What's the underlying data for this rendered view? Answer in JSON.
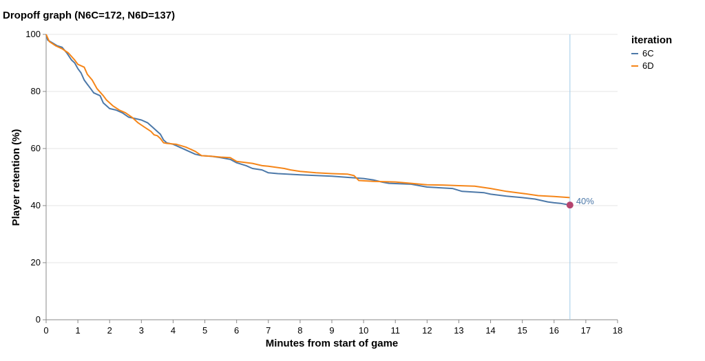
{
  "chart_data": {
    "type": "line",
    "title": "Dropoff graph (N6C=172, N6D=137)",
    "xlabel": "Minutes from start of game",
    "ylabel": "Player retention (%)",
    "xlim": [
      0,
      18
    ],
    "ylim": [
      0,
      100
    ],
    "x_ticks": [
      0,
      1,
      2,
      3,
      4,
      5,
      6,
      7,
      8,
      9,
      10,
      11,
      12,
      13,
      14,
      15,
      16,
      17,
      18
    ],
    "y_ticks": [
      0,
      20,
      40,
      60,
      80,
      100
    ],
    "grid": "horizontal",
    "legend": {
      "title": "iteration",
      "position": "right",
      "entries": [
        "6C",
        "6D"
      ]
    },
    "series": [
      {
        "name": "6C",
        "color": "#4c78a8",
        "points": [
          [
            0,
            100
          ],
          [
            0.05,
            98
          ],
          [
            0.2,
            97
          ],
          [
            0.35,
            96
          ],
          [
            0.5,
            95.5
          ],
          [
            0.65,
            93.5
          ],
          [
            0.8,
            91
          ],
          [
            0.9,
            90
          ],
          [
            1.0,
            88
          ],
          [
            1.1,
            86.5
          ],
          [
            1.2,
            84
          ],
          [
            1.3,
            82.5
          ],
          [
            1.4,
            81
          ],
          [
            1.5,
            79.5
          ],
          [
            1.7,
            78.5
          ],
          [
            1.8,
            76
          ],
          [
            1.9,
            75
          ],
          [
            2.0,
            74
          ],
          [
            2.2,
            73.5
          ],
          [
            2.4,
            72.5
          ],
          [
            2.6,
            71
          ],
          [
            2.8,
            70.5
          ],
          [
            3.0,
            70
          ],
          [
            3.2,
            69
          ],
          [
            3.35,
            67.5
          ],
          [
            3.5,
            66
          ],
          [
            3.6,
            65
          ],
          [
            3.7,
            63
          ],
          [
            3.8,
            62
          ],
          [
            4.0,
            61.5
          ],
          [
            4.2,
            60.5
          ],
          [
            4.5,
            59
          ],
          [
            4.7,
            58
          ],
          [
            4.9,
            57.5
          ],
          [
            5.2,
            57.3
          ],
          [
            5.5,
            56.8
          ],
          [
            5.8,
            56.2
          ],
          [
            6.0,
            55
          ],
          [
            6.3,
            54
          ],
          [
            6.5,
            53
          ],
          [
            6.8,
            52.5
          ],
          [
            7.0,
            51.5
          ],
          [
            7.3,
            51.2
          ],
          [
            8.0,
            50.8
          ],
          [
            9.0,
            50.3
          ],
          [
            10.0,
            49.5
          ],
          [
            10.3,
            49
          ],
          [
            10.6,
            48.2
          ],
          [
            10.8,
            47.8
          ],
          [
            11.5,
            47.5
          ],
          [
            12.0,
            46.5
          ],
          [
            12.8,
            46
          ],
          [
            13.1,
            45
          ],
          [
            13.8,
            44.5
          ],
          [
            14.0,
            44
          ],
          [
            14.5,
            43.3
          ],
          [
            15.0,
            42.8
          ],
          [
            15.4,
            42.3
          ],
          [
            15.8,
            41.3
          ],
          [
            16.0,
            41
          ],
          [
            16.2,
            40.8
          ],
          [
            16.5,
            40.2
          ]
        ]
      },
      {
        "name": "6D",
        "color": "#f58518",
        "points": [
          [
            0,
            100
          ],
          [
            0.1,
            97.5
          ],
          [
            0.3,
            96
          ],
          [
            0.5,
            95
          ],
          [
            0.7,
            93.5
          ],
          [
            0.9,
            91
          ],
          [
            1.0,
            89.5
          ],
          [
            1.2,
            88.5
          ],
          [
            1.3,
            86
          ],
          [
            1.45,
            84
          ],
          [
            1.6,
            81
          ],
          [
            1.8,
            78.5
          ],
          [
            1.9,
            77
          ],
          [
            2.1,
            75
          ],
          [
            2.3,
            73.5
          ],
          [
            2.5,
            72.5
          ],
          [
            2.7,
            71
          ],
          [
            2.9,
            69
          ],
          [
            3.1,
            67.5
          ],
          [
            3.3,
            66
          ],
          [
            3.4,
            64.8
          ],
          [
            3.5,
            64.5
          ],
          [
            3.6,
            63.5
          ],
          [
            3.7,
            62
          ],
          [
            3.8,
            61.8
          ],
          [
            4.1,
            61.5
          ],
          [
            4.4,
            60.5
          ],
          [
            4.7,
            59
          ],
          [
            4.9,
            57.5
          ],
          [
            5.2,
            57.3
          ],
          [
            5.5,
            57
          ],
          [
            5.8,
            56.8
          ],
          [
            6.0,
            55.5
          ],
          [
            6.5,
            54.8
          ],
          [
            6.8,
            54
          ],
          [
            7.0,
            53.8
          ],
          [
            7.5,
            53
          ],
          [
            7.7,
            52.5
          ],
          [
            8.0,
            52
          ],
          [
            8.5,
            51.5
          ],
          [
            9.0,
            51.2
          ],
          [
            9.5,
            51
          ],
          [
            9.7,
            50.5
          ],
          [
            9.85,
            48.8
          ],
          [
            10.3,
            48.5
          ],
          [
            11.0,
            48.3
          ],
          [
            11.5,
            47.8
          ],
          [
            12.0,
            47.3
          ],
          [
            12.5,
            47.2
          ],
          [
            13.0,
            47
          ],
          [
            13.5,
            46.8
          ],
          [
            14.0,
            46
          ],
          [
            14.5,
            45
          ],
          [
            15.0,
            44.3
          ],
          [
            15.5,
            43.5
          ],
          [
            16.0,
            43.2
          ],
          [
            16.5,
            42.8
          ]
        ]
      }
    ],
    "rule_x": 16.5,
    "highlight_point": {
      "x": 16.5,
      "y": 40.2,
      "label": "40%",
      "color": "#b5446e",
      "label_color": "#4c78a8"
    },
    "rule_color": "#9ecae9"
  }
}
